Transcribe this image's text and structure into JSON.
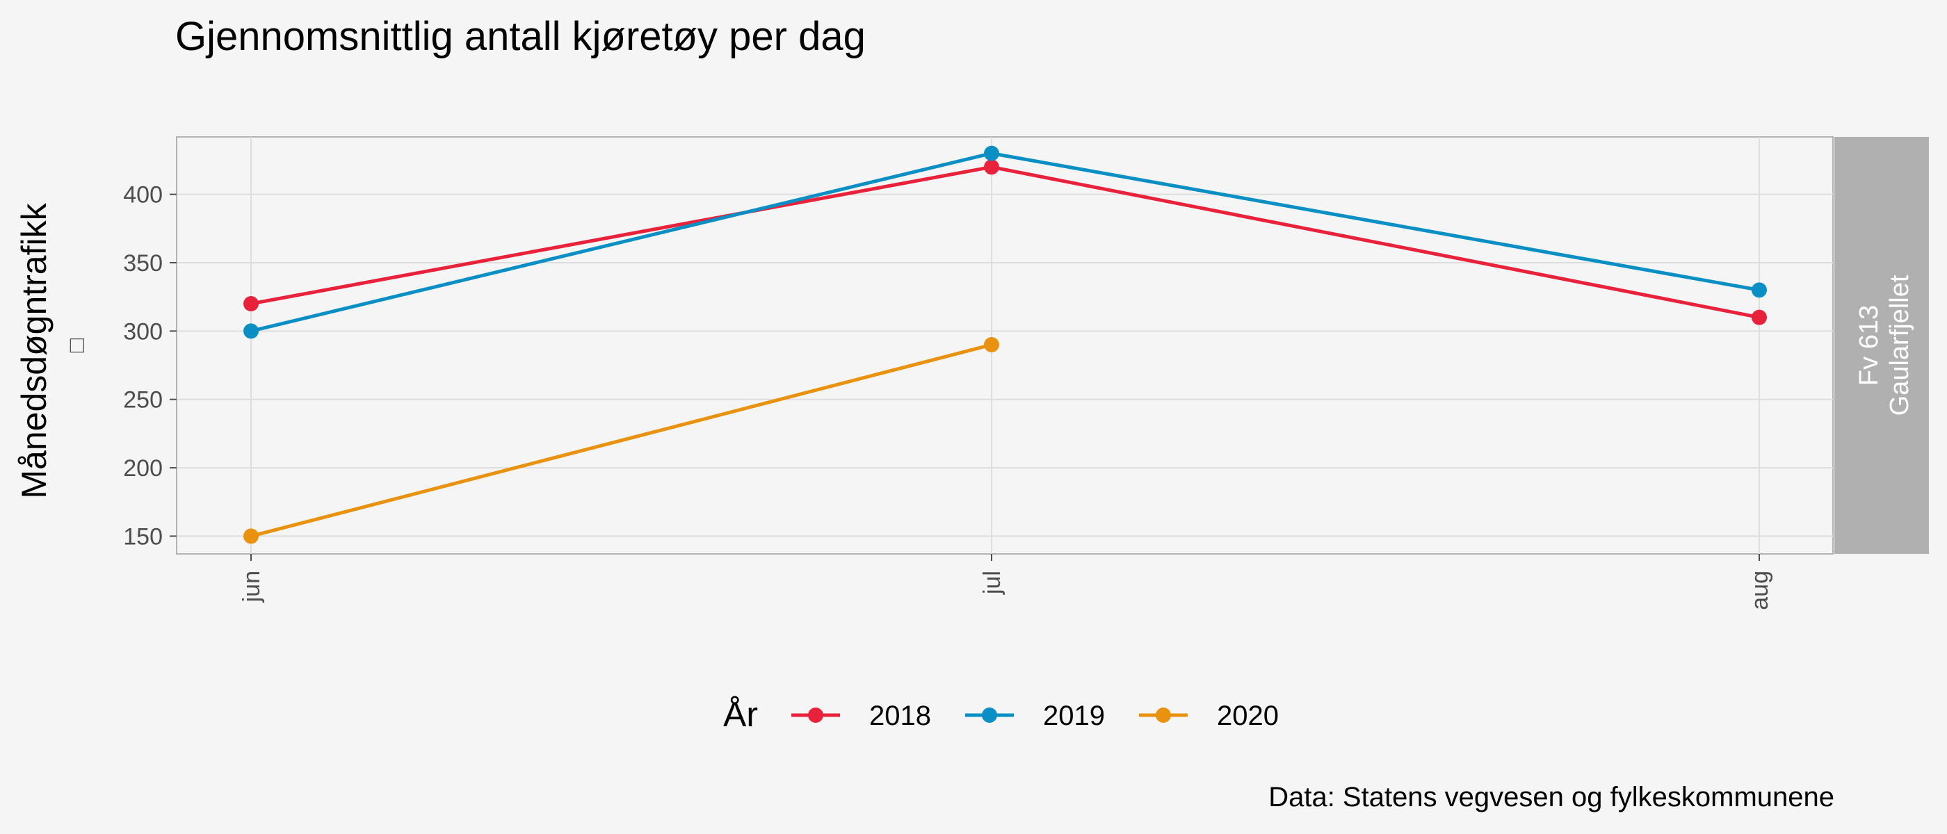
{
  "chart_data": {
    "type": "line",
    "title": "Gjennomsnittlig antall kjøretøy per dag",
    "ylabel": "Månedsdøgntrafikk",
    "ylabel_glyph": "□",
    "xlabel": "",
    "categories": [
      "jun",
      "jul",
      "aug"
    ],
    "yticks": [
      150,
      200,
      250,
      300,
      350,
      400
    ],
    "ylim": [
      137,
      442
    ],
    "grid": true,
    "facet_label": [
      "Fv 613",
      "Gaularfjellet"
    ],
    "legend": {
      "title": "År",
      "position": "bottom"
    },
    "series": [
      {
        "name": "2018",
        "color": "#e8223a",
        "values": [
          320,
          420,
          310
        ]
      },
      {
        "name": "2019",
        "color": "#0a8fc4",
        "values": [
          300,
          430,
          330
        ]
      },
      {
        "name": "2020",
        "color": "#e8920f",
        "values": [
          150,
          290,
          null
        ]
      }
    ],
    "caption": "Data: Statens vegvesen og fylkeskommunene"
  }
}
